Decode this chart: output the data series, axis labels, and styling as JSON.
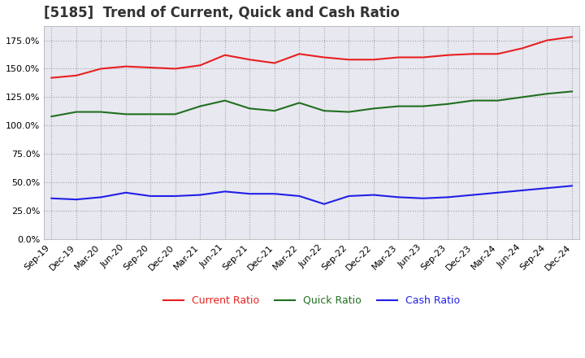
{
  "title": "[5185]  Trend of Current, Quick and Cash Ratio",
  "x_labels": [
    "Sep-19",
    "Dec-19",
    "Mar-20",
    "Jun-20",
    "Sep-20",
    "Dec-20",
    "Mar-21",
    "Jun-21",
    "Sep-21",
    "Dec-21",
    "Mar-22",
    "Jun-22",
    "Sep-22",
    "Dec-22",
    "Mar-23",
    "Jun-23",
    "Sep-23",
    "Dec-23",
    "Mar-24",
    "Jun-24",
    "Sep-24",
    "Dec-24"
  ],
  "current_ratio": [
    142,
    144,
    150,
    152,
    151,
    150,
    153,
    162,
    158,
    155,
    163,
    160,
    158,
    158,
    160,
    160,
    162,
    163,
    163,
    168,
    175,
    178
  ],
  "quick_ratio": [
    108,
    112,
    112,
    110,
    110,
    110,
    117,
    122,
    115,
    113,
    120,
    113,
    112,
    115,
    117,
    117,
    119,
    122,
    122,
    125,
    128,
    130
  ],
  "cash_ratio": [
    36,
    35,
    37,
    41,
    38,
    38,
    39,
    42,
    40,
    40,
    38,
    31,
    38,
    39,
    37,
    36,
    37,
    39,
    41,
    43,
    45,
    47
  ],
  "current_color": "#e82020",
  "quick_color": "#207020",
  "cash_color": "#2020e8",
  "background_color": "#ffffff",
  "plot_bg_color": "#e8e8f0",
  "grid_color": "#999999",
  "ylim": [
    0,
    187.5
  ],
  "yticks": [
    0,
    25,
    50,
    75,
    100,
    125,
    150,
    175
  ],
  "title_fontsize": 12,
  "axis_fontsize": 8,
  "legend_fontsize": 9
}
